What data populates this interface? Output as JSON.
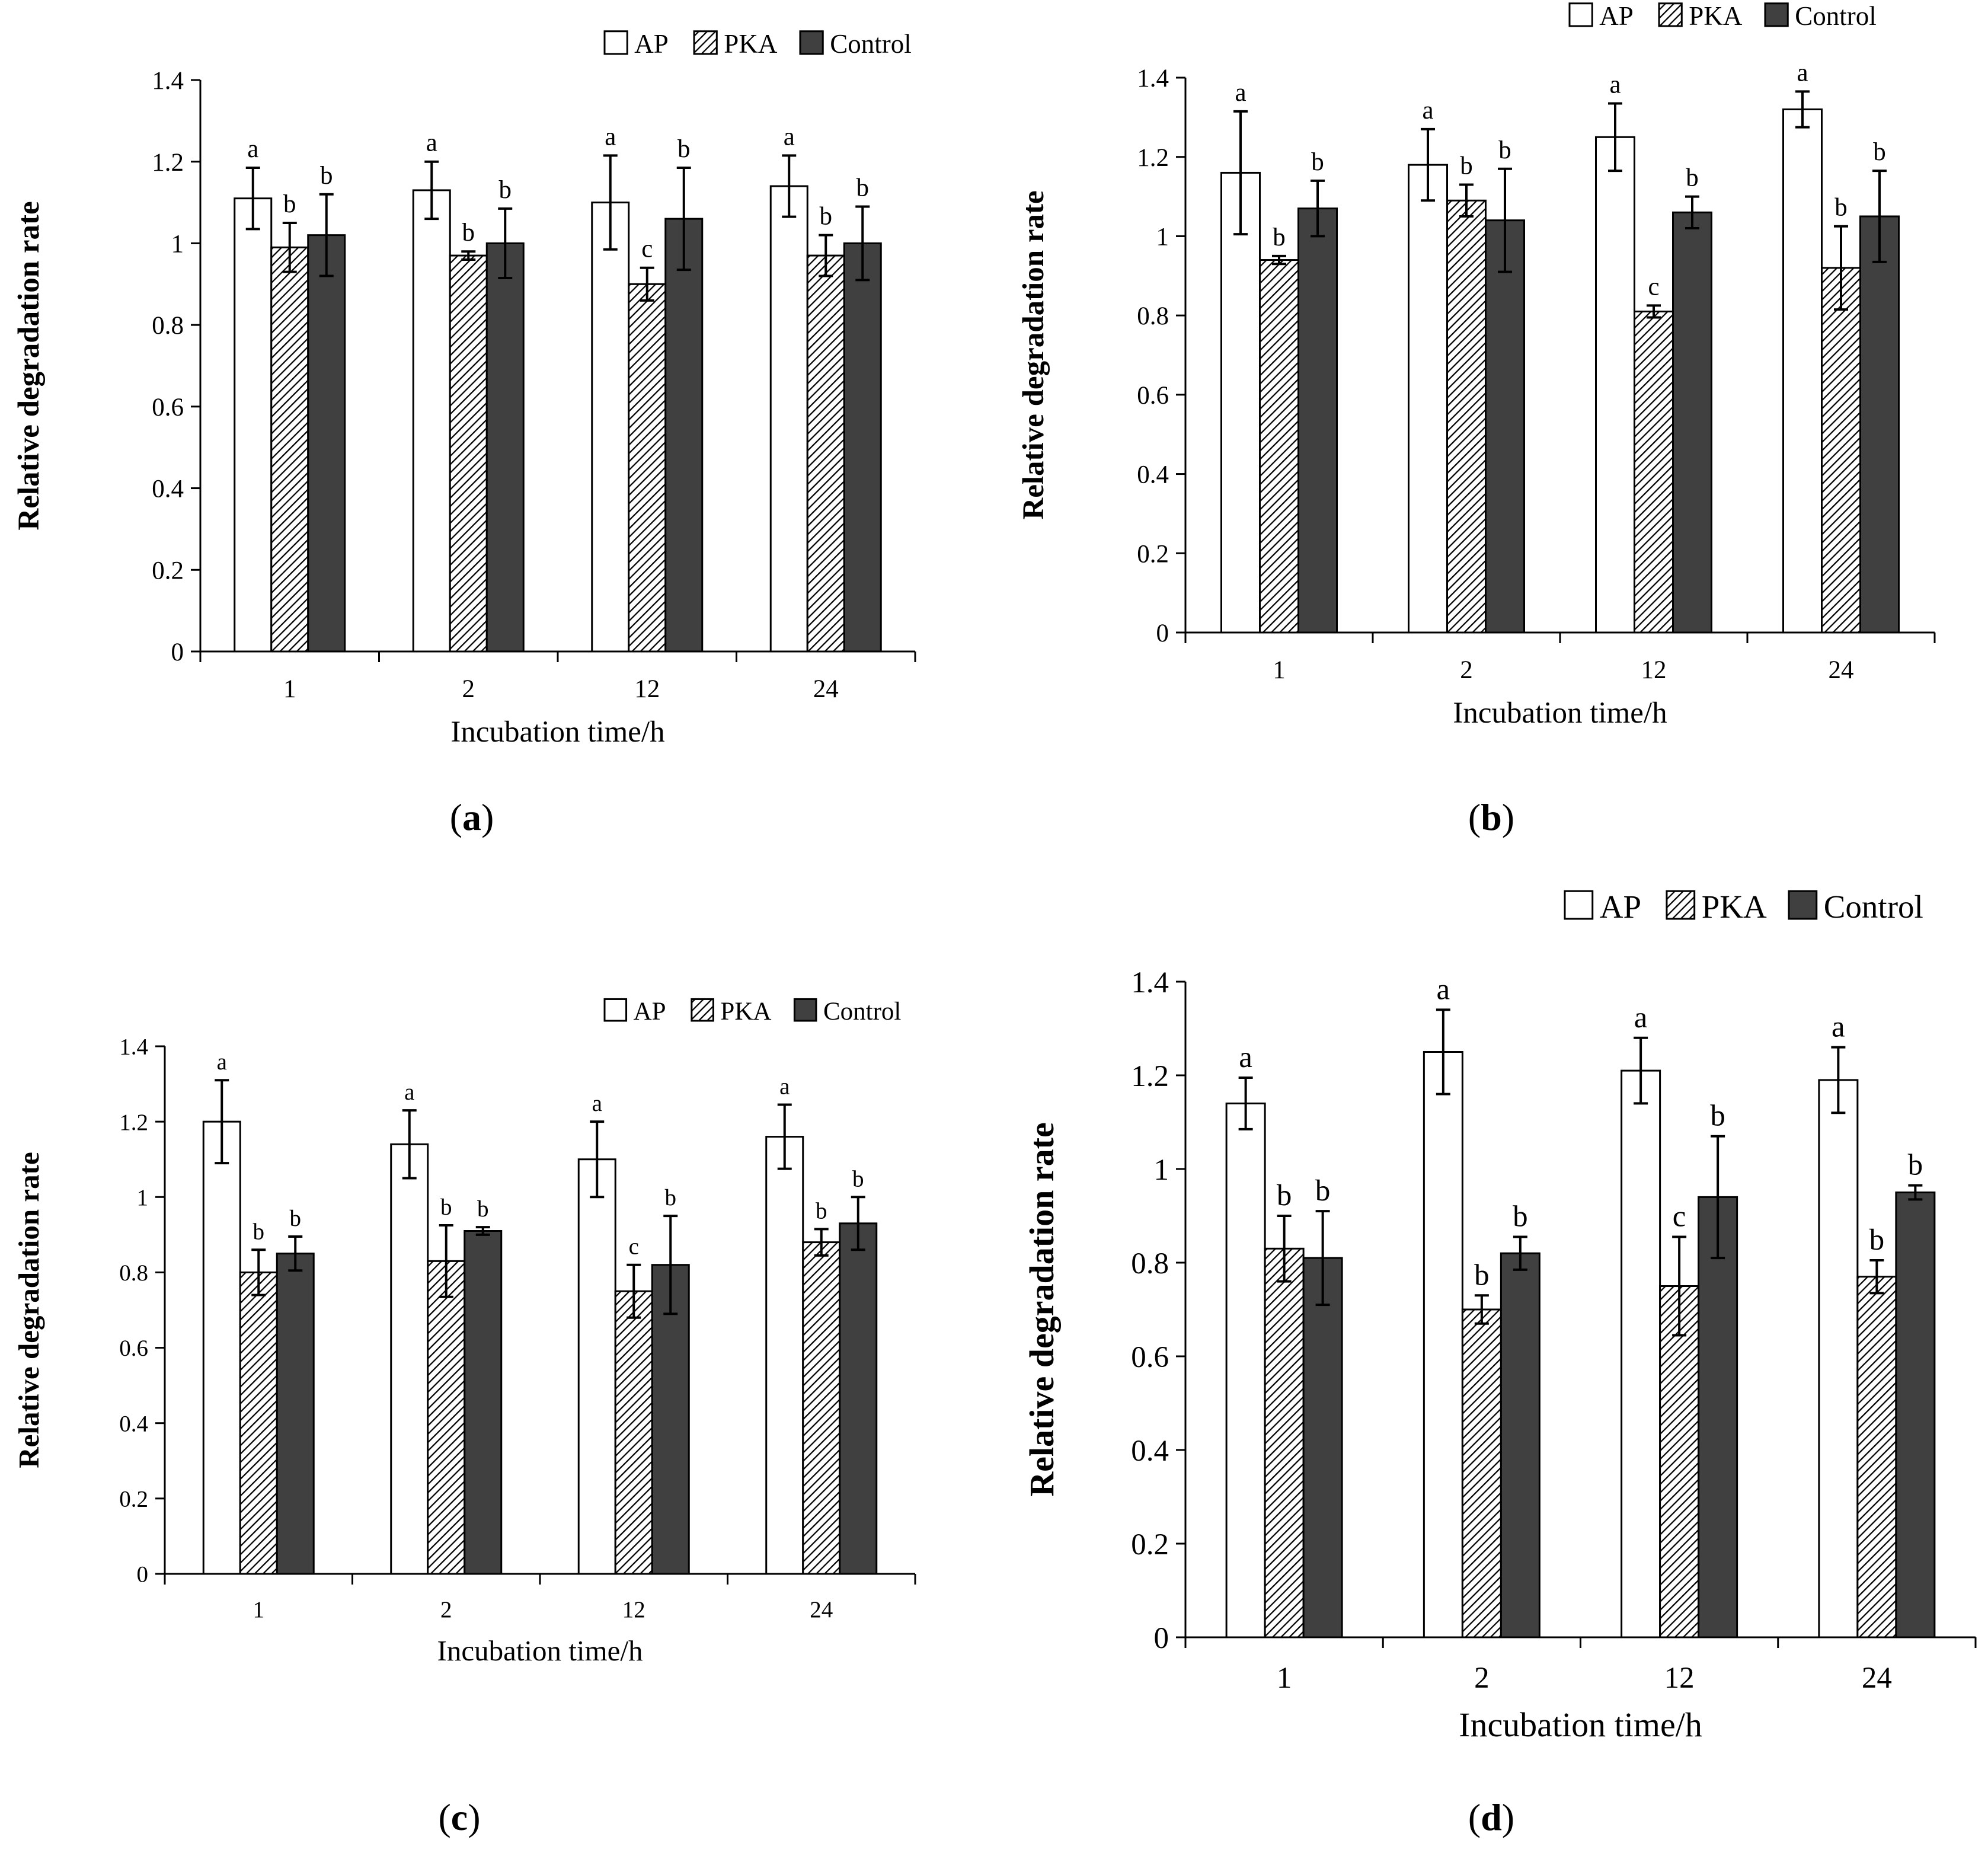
{
  "colors": {
    "ap_fill": "#ffffff",
    "control_fill": "#404040",
    "axis": "#000000",
    "pka_hatch": "#000000"
  },
  "chart_data": [
    {
      "panel_label": "a",
      "type": "bar",
      "title": "",
      "xlabel": "Incubation time/h",
      "ylabel": "Relative degradation rate",
      "ylim": [
        0,
        1.4
      ],
      "yticks": [
        "0",
        "0.2",
        "0.4",
        "0.6",
        "0.8",
        "1",
        "1.2",
        "1.4"
      ],
      "categories": [
        "1",
        "2",
        "12",
        "24"
      ],
      "legend": [
        "AP",
        "PKA",
        "Control"
      ],
      "legend_position": "top-right",
      "series": [
        {
          "name": "AP",
          "values": [
            1.11,
            1.13,
            1.1,
            1.14
          ],
          "errors": [
            0.075,
            0.07,
            0.115,
            0.075
          ],
          "letters": [
            "a",
            "a",
            "a",
            "a"
          ]
        },
        {
          "name": "PKA",
          "values": [
            0.99,
            0.97,
            0.9,
            0.97
          ],
          "errors": [
            0.06,
            0.01,
            0.04,
            0.05
          ],
          "letters": [
            "b",
            "b",
            "c",
            "b"
          ]
        },
        {
          "name": "Control",
          "values": [
            1.02,
            1.0,
            1.06,
            1.0
          ],
          "errors": [
            0.1,
            0.085,
            0.125,
            0.09
          ],
          "letters": [
            "b",
            "b",
            "b",
            "b"
          ]
        }
      ]
    },
    {
      "panel_label": "b",
      "type": "bar",
      "title": "",
      "xlabel": "Incubation time/h",
      "ylabel": "Relative degradation rate",
      "ylim": [
        0,
        1.4
      ],
      "yticks": [
        "0",
        "0.2",
        "0.4",
        "0.6",
        "0.8",
        "1",
        "1.2",
        "1.4"
      ],
      "categories": [
        "1",
        "2",
        "12",
        "24"
      ],
      "legend": [
        "AP",
        "PKA",
        "Control"
      ],
      "legend_position": "top-right",
      "series": [
        {
          "name": "AP",
          "values": [
            1.16,
            1.18,
            1.25,
            1.32
          ],
          "errors": [
            0.155,
            0.09,
            0.085,
            0.045
          ],
          "letters": [
            "a",
            "a",
            "a",
            "a"
          ]
        },
        {
          "name": "PKA",
          "values": [
            0.94,
            1.09,
            0.81,
            0.92
          ],
          "errors": [
            0.01,
            0.04,
            0.015,
            0.105
          ],
          "letters": [
            "b",
            "b",
            "c",
            "b"
          ]
        },
        {
          "name": "Control",
          "values": [
            1.07,
            1.04,
            1.06,
            1.05
          ],
          "errors": [
            0.07,
            0.13,
            0.04,
            0.115
          ],
          "letters": [
            "b",
            "b",
            "b",
            "b"
          ]
        }
      ]
    },
    {
      "panel_label": "c",
      "type": "bar",
      "title": "",
      "xlabel": "Incubation time/h",
      "ylabel": "Relative degradation rate",
      "ylim": [
        0,
        1.4
      ],
      "yticks": [
        "0",
        "0.2",
        "0.4",
        "0.6",
        "0.8",
        "1",
        "1.2",
        "1.4"
      ],
      "categories": [
        "1",
        "2",
        "12",
        "24"
      ],
      "legend": [
        "AP",
        "PKA",
        "Control"
      ],
      "legend_position": "top-right",
      "series": [
        {
          "name": "AP",
          "values": [
            1.2,
            1.14,
            1.1,
            1.16
          ],
          "errors": [
            0.11,
            0.09,
            0.1,
            0.085
          ],
          "letters": [
            "a",
            "a",
            "a",
            "a"
          ]
        },
        {
          "name": "PKA",
          "values": [
            0.8,
            0.83,
            0.75,
            0.88
          ],
          "errors": [
            0.06,
            0.095,
            0.07,
            0.035
          ],
          "letters": [
            "b",
            "b",
            "c",
            "b"
          ]
        },
        {
          "name": "Control",
          "values": [
            0.85,
            0.91,
            0.82,
            0.93
          ],
          "errors": [
            0.045,
            0.01,
            0.13,
            0.07
          ],
          "letters": [
            "b",
            "b",
            "b",
            "b"
          ]
        }
      ]
    },
    {
      "panel_label": "d",
      "type": "bar",
      "title": "",
      "xlabel": "Incubation time/h",
      "ylabel": "Relative degradation rate",
      "ylim": [
        0,
        1.4
      ],
      "yticks": [
        "0",
        "0.2",
        "0.4",
        "0.6",
        "0.8",
        "1",
        "1.2",
        "1.4"
      ],
      "categories": [
        "1",
        "2",
        "12",
        "24"
      ],
      "legend": [
        "AP",
        "PKA",
        "Control"
      ],
      "legend_position": "top-right",
      "series": [
        {
          "name": "AP",
          "values": [
            1.14,
            1.25,
            1.21,
            1.19
          ],
          "errors": [
            0.055,
            0.09,
            0.07,
            0.07
          ],
          "letters": [
            "a",
            "a",
            "a",
            "a"
          ]
        },
        {
          "name": "PKA",
          "values": [
            0.83,
            0.7,
            0.75,
            0.77
          ],
          "errors": [
            0.07,
            0.03,
            0.105,
            0.035
          ],
          "letters": [
            "b",
            "b",
            "c",
            "b"
          ]
        },
        {
          "name": "Control",
          "values": [
            0.81,
            0.82,
            0.94,
            0.95
          ],
          "errors": [
            0.1,
            0.035,
            0.13,
            0.015
          ],
          "letters": [
            "b",
            "b",
            "b",
            "b"
          ]
        }
      ]
    }
  ]
}
